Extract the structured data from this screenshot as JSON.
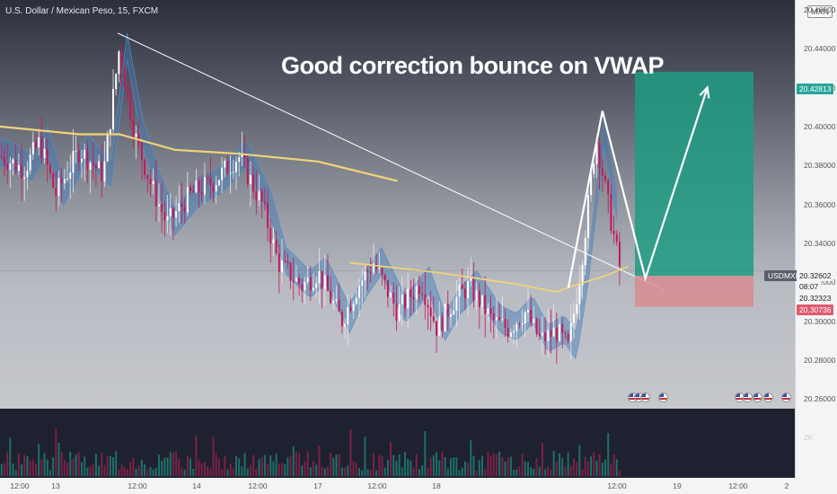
{
  "header": {
    "title": "U.S. Dollar / Mexican Peso, 15, FXCM",
    "currency_badge": "MXN"
  },
  "headline": "Good correction bounce on VWAP",
  "price_axis": {
    "ticks": [
      "20.46000",
      "20.44000",
      "20.42000",
      "20.40000",
      "20.38000",
      "20.36000",
      "20.34000",
      "20.32000",
      "20.30000",
      "20.28000",
      "20.26000"
    ],
    "tick_values": [
      20.46,
      20.44,
      20.42,
      20.4,
      20.38,
      20.36,
      20.34,
      20.32,
      20.3,
      20.28,
      20.26
    ],
    "tags": {
      "target": "20.42813",
      "symbol": "USDMXN",
      "last": "20.32602",
      "countdown": "08:07",
      "entry": "20.32323",
      "stop": "20.30736"
    }
  },
  "volume_axis": {
    "tick": "2K"
  },
  "time_axis": {
    "labels": [
      "12:00",
      "13",
      "12:00",
      "14",
      "12:00",
      "17",
      "12:00",
      "18",
      "12:00",
      "19",
      "12:00",
      "2"
    ]
  },
  "colors": {
    "bull": "#26a69a",
    "bear": "#c2185b",
    "target_zone": "#1f9b82",
    "stop_zone": "#d9888f",
    "vwap": "#f0d37a",
    "trendline": "#ffffff",
    "band": "#3f79b5"
  },
  "chart_data": {
    "type": "candlestick",
    "title": "U.S. Dollar / Mexican Peso, 15, FXCM",
    "symbol": "USDMXN",
    "interval": "15",
    "ylim": [
      20.255,
      20.465
    ],
    "x_labels": [
      "12:00",
      "13",
      "12:00",
      "14",
      "12:00",
      "17",
      "12:00",
      "18",
      "12:00",
      "19",
      "12:00",
      "2"
    ],
    "close_path": [
      {
        "t": 0,
        "p": 20.385
      },
      {
        "t": 0.03,
        "p": 20.378
      },
      {
        "t": 0.05,
        "p": 20.392
      },
      {
        "t": 0.07,
        "p": 20.365
      },
      {
        "t": 0.1,
        "p": 20.388
      },
      {
        "t": 0.13,
        "p": 20.375
      },
      {
        "t": 0.15,
        "p": 20.44
      },
      {
        "t": 0.17,
        "p": 20.395
      },
      {
        "t": 0.19,
        "p": 20.37
      },
      {
        "t": 0.21,
        "p": 20.35
      },
      {
        "t": 0.24,
        "p": 20.365
      },
      {
        "t": 0.27,
        "p": 20.372
      },
      {
        "t": 0.3,
        "p": 20.385
      },
      {
        "t": 0.33,
        "p": 20.36
      },
      {
        "t": 0.35,
        "p": 20.33
      },
      {
        "t": 0.38,
        "p": 20.318
      },
      {
        "t": 0.4,
        "p": 20.325
      },
      {
        "t": 0.43,
        "p": 20.3
      },
      {
        "t": 0.45,
        "p": 20.318
      },
      {
        "t": 0.47,
        "p": 20.33
      },
      {
        "t": 0.5,
        "p": 20.305
      },
      {
        "t": 0.53,
        "p": 20.32
      },
      {
        "t": 0.55,
        "p": 20.296
      },
      {
        "t": 0.57,
        "p": 20.31
      },
      {
        "t": 0.59,
        "p": 20.318
      },
      {
        "t": 0.62,
        "p": 20.3
      },
      {
        "t": 0.64,
        "p": 20.296
      },
      {
        "t": 0.66,
        "p": 20.305
      },
      {
        "t": 0.68,
        "p": 20.29
      },
      {
        "t": 0.7,
        "p": 20.295
      },
      {
        "t": 0.715,
        "p": 20.286
      },
      {
        "t": 0.73,
        "p": 20.325
      },
      {
        "t": 0.75,
        "p": 20.395
      },
      {
        "t": 0.765,
        "p": 20.36
      },
      {
        "t": 0.78,
        "p": 20.327
      }
    ],
    "vwap": [
      {
        "t": 0,
        "p": 20.4
      },
      {
        "t": 0.1,
        "p": 20.396
      },
      {
        "t": 0.15,
        "p": 20.396
      },
      {
        "t": 0.22,
        "p": 20.388
      },
      {
        "t": 0.3,
        "p": 20.386
      },
      {
        "t": 0.4,
        "p": 20.382
      },
      {
        "t": 0.46,
        "p": 20.376
      },
      {
        "t": 0.5,
        "p": 20.372
      }
    ],
    "vwap_2": [
      {
        "t": 0.44,
        "p": 20.33
      },
      {
        "t": 0.55,
        "p": 20.325
      },
      {
        "t": 0.65,
        "p": 20.319
      },
      {
        "t": 0.7,
        "p": 20.315
      },
      {
        "t": 0.72,
        "p": 20.318
      },
      {
        "t": 0.76,
        "p": 20.323
      },
      {
        "t": 0.79,
        "p": 20.328
      }
    ],
    "trendline": {
      "from": {
        "t": 0.148,
        "p": 20.448
      },
      "to": {
        "t": 0.835,
        "p": 20.316
      }
    },
    "annotation_path": [
      {
        "t": 0.715,
        "p": 20.317
      },
      {
        "t": 0.758,
        "p": 20.408
      },
      {
        "t": 0.812,
        "p": 20.322
      },
      {
        "t": 0.89,
        "p": 20.42
      }
    ],
    "long_position": {
      "entry": 20.32323,
      "target": 20.42813,
      "stop": 20.30736
    },
    "last_price": 20.32602
  }
}
